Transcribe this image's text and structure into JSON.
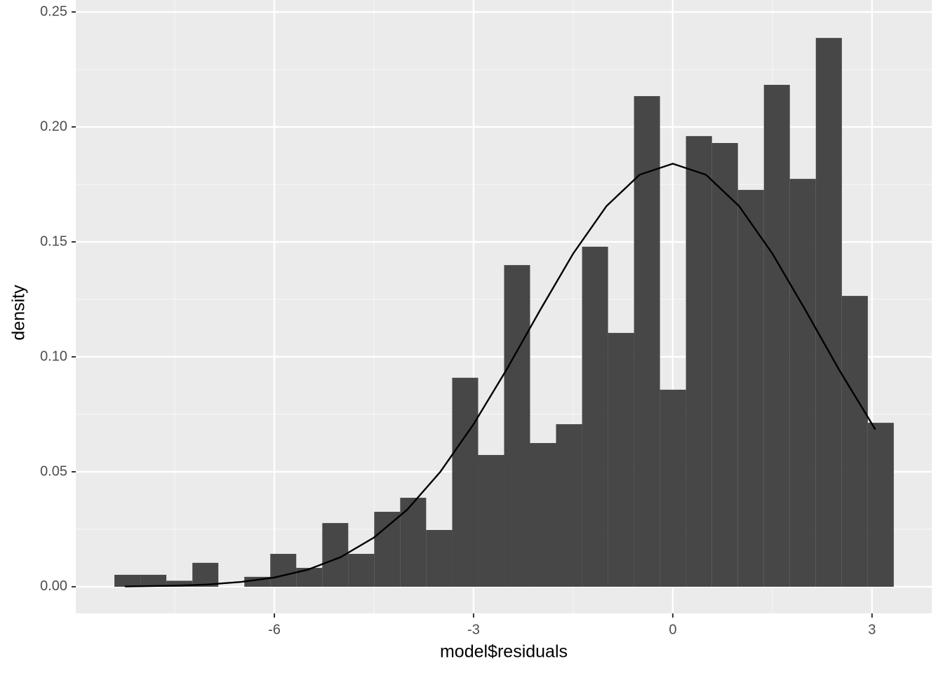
{
  "chart_data": {
    "type": "histogram",
    "x_label": "model$residuals",
    "y_label": "density",
    "bins": [
      -8.408,
      -8.017,
      -7.626,
      -7.234,
      -6.843,
      -6.452,
      -6.061,
      -5.67,
      -5.278,
      -4.887,
      -4.496,
      -4.105,
      -3.714,
      -3.322,
      -2.931,
      -2.54,
      -2.149,
      -1.758,
      -1.366,
      -0.975,
      -0.584,
      -0.193,
      0.198,
      0.59,
      0.981,
      1.372,
      1.763,
      2.154,
      2.546,
      2.937,
      3.328
    ],
    "values": [
      0.0052,
      0.0052,
      0.0026,
      0.0104,
      0,
      0.0043,
      0.0143,
      0.0082,
      0.0277,
      0.0143,
      0.0326,
      0.0387,
      0.0247,
      0.0909,
      0.0573,
      0.1399,
      0.0625,
      0.0707,
      0.1479,
      0.1104,
      0.2134,
      0.0857,
      0.196,
      0.193,
      0.1726,
      0.2183,
      0.1774,
      0.2387,
      0.1265,
      0.0713
    ],
    "color": "#474747",
    "curve": {
      "color": "#000000",
      "x": [
        -8.25,
        -7.5,
        -7,
        -6.5,
        -6,
        -5.5,
        -5,
        -4.5,
        -4,
        -3.5,
        -3,
        -2.5,
        -2,
        -1.5,
        -1,
        -0.5,
        0,
        0.5,
        1,
        1.5,
        2,
        2.5,
        3.05
      ],
      "values": [
        0.00013,
        0.00046,
        0.001,
        0.0021,
        0.004,
        0.0074,
        0.0129,
        0.0214,
        0.0335,
        0.05,
        0.0707,
        0.0946,
        0.1202,
        0.1449,
        0.1655,
        0.1792,
        0.184,
        0.1792,
        0.1655,
        0.1449,
        0.1202,
        0.0946,
        0.0684
      ]
    },
    "xlim": [
      -8.99,
      3.9
    ],
    "xticks": [
      -6,
      -3,
      0,
      3
    ],
    "ylim": [
      -0.0116,
      0.2552
    ],
    "yticks": [
      {
        "value": 0,
        "label": "0.00"
      },
      {
        "value": 0.05,
        "label": "0.05"
      },
      {
        "value": 0.1,
        "label": "0.10"
      },
      {
        "value": 0.15,
        "label": "0.15"
      },
      {
        "value": 0.2,
        "label": "0.20"
      },
      {
        "value": 0.25,
        "label": "0.25"
      }
    ],
    "grid": true
  }
}
